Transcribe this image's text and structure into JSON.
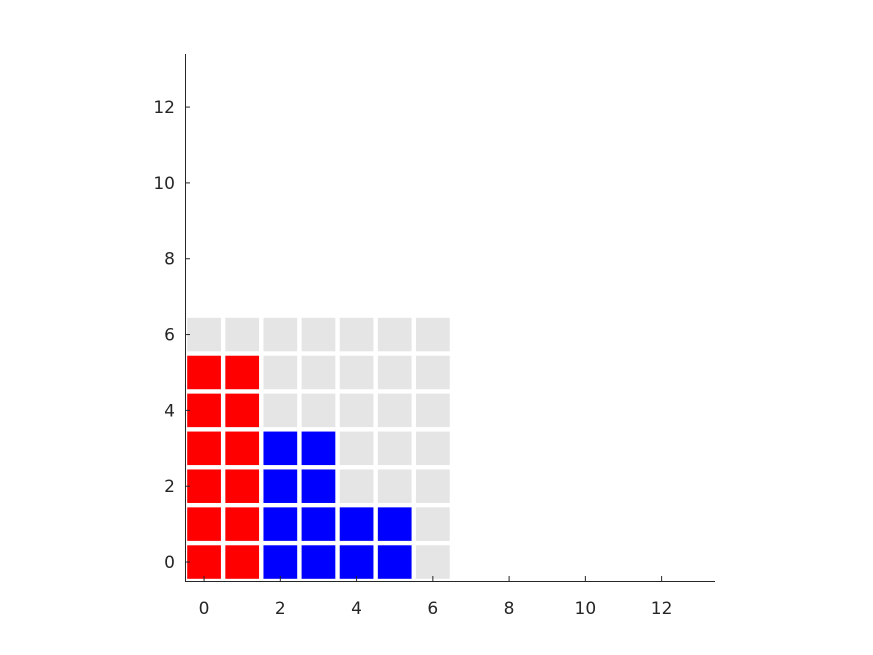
{
  "chart_data": {
    "type": "heatmap",
    "title": "",
    "xlabel": "",
    "ylabel": "",
    "xlim": [
      -0.5,
      13.4
    ],
    "ylim": [
      -0.5,
      13.4
    ],
    "grid": false,
    "legend": "none",
    "x_ticks": [
      0,
      2,
      4,
      6,
      8,
      10,
      12
    ],
    "y_ticks": [
      0,
      2,
      4,
      6,
      8,
      10,
      12
    ],
    "x_tick_labels": [
      "0",
      "2",
      "4",
      "6",
      "8",
      "10",
      "12"
    ],
    "y_tick_labels": [
      "0",
      "2",
      "4",
      "6",
      "8",
      "10",
      "12"
    ],
    "colors": {
      "empty": "#e5e5e5",
      "red": "#ff0000",
      "blue": "#0000ff"
    },
    "grid_size": [
      7,
      7
    ],
    "cells": {
      "red": [
        [
          0,
          0
        ],
        [
          1,
          0
        ],
        [
          0,
          1
        ],
        [
          1,
          1
        ],
        [
          0,
          2
        ],
        [
          1,
          2
        ],
        [
          0,
          3
        ],
        [
          1,
          3
        ],
        [
          0,
          4
        ],
        [
          1,
          4
        ],
        [
          0,
          5
        ],
        [
          1,
          5
        ]
      ],
      "blue": [
        [
          2,
          0
        ],
        [
          3,
          0
        ],
        [
          4,
          0
        ],
        [
          5,
          0
        ],
        [
          2,
          1
        ],
        [
          3,
          1
        ],
        [
          4,
          1
        ],
        [
          5,
          1
        ],
        [
          2,
          2
        ],
        [
          3,
          2
        ],
        [
          2,
          3
        ],
        [
          3,
          3
        ]
      ]
    }
  }
}
